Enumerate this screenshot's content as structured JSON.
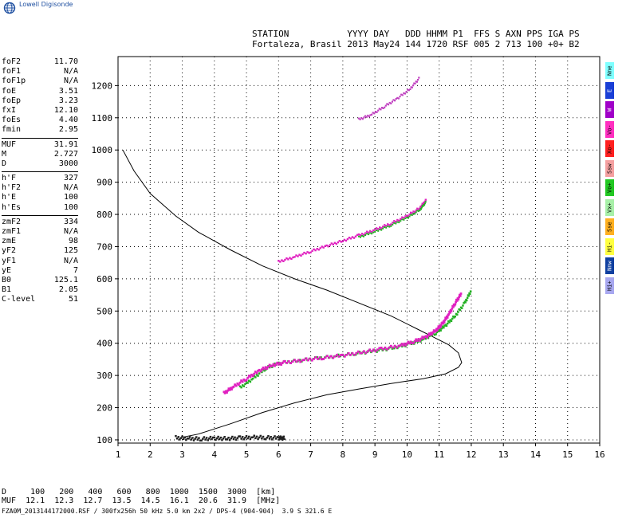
{
  "app": {
    "logo_text": "Lowell Digisonde",
    "logo_icon": "globe-icon"
  },
  "header": {
    "line1": "STATION           YYYY DAY   DDD HHMM P1  FFS S AXN PPS IGA PS",
    "line2": "Fortaleza, Brasil 2013 May24 144 1720 RSF 005 2 713 100 +0+ B2"
  },
  "params": [
    {
      "name": "foF2",
      "value": "11.70"
    },
    {
      "name": "foF1",
      "value": "N/A"
    },
    {
      "name": "foF1p",
      "value": "N/A"
    },
    {
      "name": "foE",
      "value": "3.51"
    },
    {
      "name": "foEp",
      "value": "3.23"
    },
    {
      "name": "fxI",
      "value": "12.10"
    },
    {
      "name": "foEs",
      "value": "4.40"
    },
    {
      "name": "fmin",
      "value": "2.95"
    },
    {
      "sep": true
    },
    {
      "name": "MUF",
      "value": "31.91"
    },
    {
      "name": "M",
      "value": "2.727"
    },
    {
      "name": "D",
      "value": "3000"
    },
    {
      "sep": true
    },
    {
      "name": "h'F",
      "value": "327"
    },
    {
      "name": "h'F2",
      "value": "N/A"
    },
    {
      "name": "h'E",
      "value": "100"
    },
    {
      "name": "h'Es",
      "value": "100"
    },
    {
      "sep": true
    },
    {
      "name": "zmF2",
      "value": "334"
    },
    {
      "name": "zmF1",
      "value": "N/A"
    },
    {
      "name": "zmE",
      "value": "98"
    },
    {
      "name": "yF2",
      "value": "125"
    },
    {
      "name": "yF1",
      "value": "N/A"
    },
    {
      "name": "yE",
      "value": "7"
    },
    {
      "name": "B0",
      "value": "125.1"
    },
    {
      "name": "B1",
      "value": "2.05"
    },
    {
      "name": "C-level",
      "value": "51"
    }
  ],
  "legend": [
    {
      "label": "Nne",
      "color": "#7fffff"
    },
    {
      "label": "E",
      "color": "#1a3fd6"
    },
    {
      "label": "W",
      "color": "#a000c8"
    },
    {
      "label": "Vo-",
      "color": "#ff2fc0"
    },
    {
      "label": "Xo-",
      "color": "#ff2020"
    },
    {
      "label": "Ssw",
      "color": "#f5a0a0"
    },
    {
      "label": "Vo+",
      "color": "#22c822"
    },
    {
      "label": "Vx+",
      "color": "#a8f0a8"
    },
    {
      "label": "Sse",
      "color": "#ffb020"
    },
    {
      "label": "Hi-",
      "color": "#ffff40"
    },
    {
      "label": "Nnw",
      "color": "#1040a0"
    },
    {
      "label": "Hi+",
      "color": "#a8a8f0"
    }
  ],
  "footer": {
    "d_line": "D     100   200   400   600   800  1000  1500  3000  [km]",
    "muf_line": "MUF  12.1  12.3  12.7  13.5  14.5  16.1  20.6  31.9  [MHz]",
    "file_line": "FZA0M_2013144172000.RSF / 300fx256h 50 kHz 5.0 km 2x2 / DPS-4 (904-904)  3.9 S 321.6 E"
  },
  "chart_data": {
    "type": "scatter",
    "xlim": [
      1,
      16
    ],
    "ylim": [
      90,
      1290
    ],
    "xticks": [
      "1",
      "2",
      "3",
      "4",
      "5",
      "6",
      "7",
      "8",
      "9",
      "10",
      "11",
      "12",
      "13",
      "14",
      "15",
      "16"
    ],
    "yticks": [
      "100",
      "200",
      "300",
      "400",
      "500",
      "600",
      "700",
      "800",
      "900",
      "1000",
      "1100",
      "1200"
    ],
    "grid": "dotted",
    "profile_line": {
      "x": [
        1.15,
        1.5,
        2.0,
        2.8,
        3.5,
        4.5,
        5.5,
        6.5,
        7.5,
        8.5,
        9.5,
        10.3,
        10.8,
        11.3,
        11.6,
        11.7,
        11.6,
        11.2,
        10.5,
        9.5,
        8.5,
        7.5,
        6.5,
        5.5,
        4.5,
        3.5,
        3.0
      ],
      "y": [
        1000,
        935,
        865,
        795,
        745,
        690,
        640,
        600,
        565,
        525,
        485,
        445,
        420,
        395,
        370,
        340,
        325,
        305,
        290,
        275,
        258,
        240,
        215,
        185,
        150,
        118,
        108
      ]
    },
    "traces": {
      "F_low_magenta": {
        "x": [
          4.3,
          4.6,
          5.0,
          5.4,
          5.8,
          6.2,
          6.8,
          7.4,
          8.0,
          8.6,
          9.2,
          9.8,
          10.2,
          10.6,
          10.9,
          11.1,
          11.3,
          11.5,
          11.7
        ],
        "y": [
          245,
          265,
          290,
          315,
          332,
          340,
          348,
          355,
          362,
          372,
          382,
          393,
          405,
          420,
          440,
          460,
          490,
          525,
          555
        ]
      },
      "F_low_green": {
        "x": [
          4.8,
          5.2,
          5.6,
          6.0,
          6.6,
          7.2,
          7.8,
          8.4,
          9.0,
          9.6,
          10.1,
          10.5,
          10.9,
          11.2,
          11.5,
          11.8,
          12.0
        ],
        "y": [
          262,
          290,
          322,
          338,
          346,
          353,
          360,
          368,
          376,
          386,
          398,
          412,
          432,
          455,
          485,
          525,
          565
        ]
      },
      "F_second_hop": {
        "x": [
          6.0,
          6.5,
          7.0,
          7.5,
          8.0,
          8.5,
          9.0,
          9.5,
          10.0,
          10.4,
          10.6
        ],
        "y": [
          653,
          668,
          685,
          702,
          718,
          735,
          752,
          772,
          795,
          820,
          845
        ]
      },
      "F_third_hop": {
        "x": [
          8.5,
          8.9,
          9.3,
          9.7,
          10.1,
          10.4
        ],
        "y": [
          1095,
          1110,
          1135,
          1160,
          1190,
          1225
        ]
      },
      "E_layer": {
        "x": [
          2.8,
          3.2,
          3.6,
          4.0,
          4.4,
          4.8,
          5.2,
          5.6,
          6.0,
          6.2
        ],
        "y": [
          107,
          104,
          103,
          105,
          104,
          106,
          108,
          107,
          106,
          105
        ]
      }
    }
  }
}
